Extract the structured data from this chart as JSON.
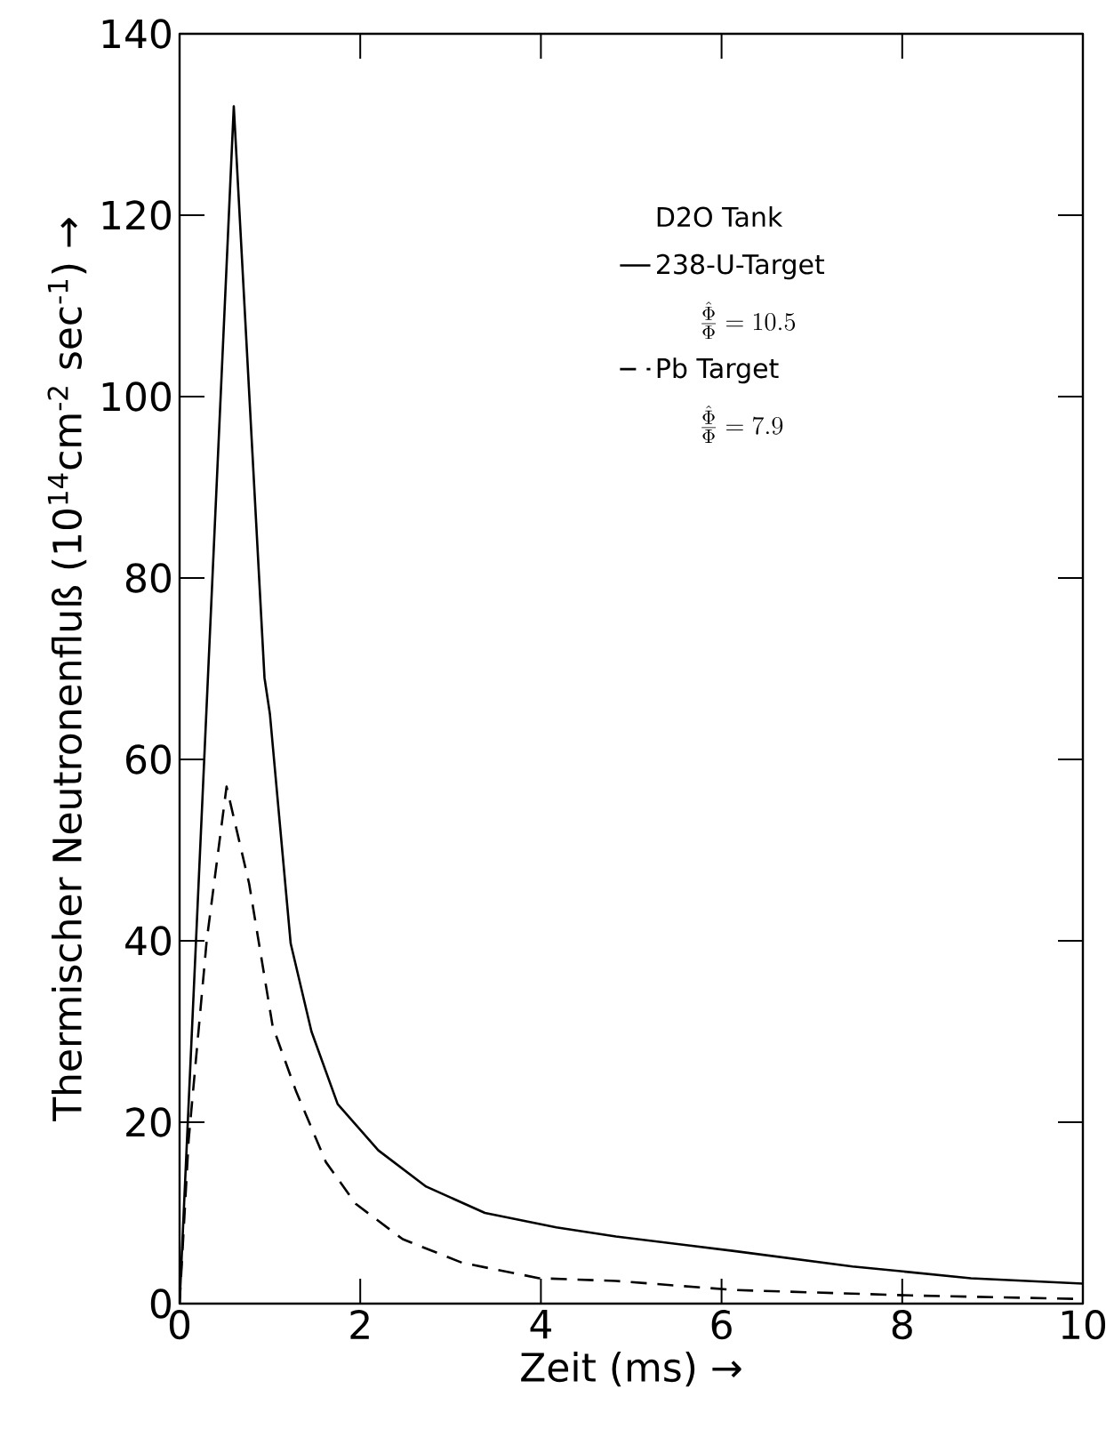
{
  "chart_data": {
    "type": "line",
    "xlabel": "Zeit (ms) →",
    "ylabel": "Thermischer Neutronenfluß (10$^{14}$cm$^{-2}$ sec$^{-1}$) →",
    "xlim": [
      0,
      10
    ],
    "ylim": [
      0,
      140
    ],
    "xticks": [
      0,
      2,
      4,
      6,
      8,
      10
    ],
    "yticks": [
      0,
      20,
      40,
      60,
      80,
      100,
      120,
      140
    ],
    "legend": "top right",
    "legend_title": "D2O Tank",
    "grid": false,
    "marker": "none",
    "annotations": [
      "\\frac{\\hat{\\Phi}}{\\Phi} = 10.5",
      "\\frac{\\hat{\\Phi}}{\\Phi} = 7.9"
    ],
    "series": [
      {
        "name": "238-U-Target",
        "color": "#000000",
        "line_style": "solid",
        "x": [
          0,
          0.6,
          0.94,
          1.0,
          1.23,
          1.46,
          1.75,
          2.2,
          2.73,
          3.38,
          4.17,
          4.83,
          6.14,
          7.45,
          8.76,
          10
        ],
        "values": [
          0,
          132,
          69,
          65,
          39.7,
          30,
          22,
          16.9,
          12.9,
          10,
          8.4,
          7.4,
          5.8,
          4.1,
          2.8,
          2.2
        ]
      },
      {
        "name": "Pb Target",
        "color": "#000000",
        "line_style": "dashed",
        "x": [
          0,
          0.1,
          0.3,
          0.52,
          0.77,
          1.03,
          1.29,
          1.62,
          1.95,
          2.47,
          3.13,
          3.98,
          4.83,
          6.14,
          8.1,
          10
        ],
        "values": [
          0,
          18,
          40,
          57,
          46.3,
          30.6,
          23.4,
          15.6,
          11,
          7.1,
          4.5,
          2.8,
          2.5,
          1.5,
          0.9,
          0.5
        ]
      }
    ]
  }
}
